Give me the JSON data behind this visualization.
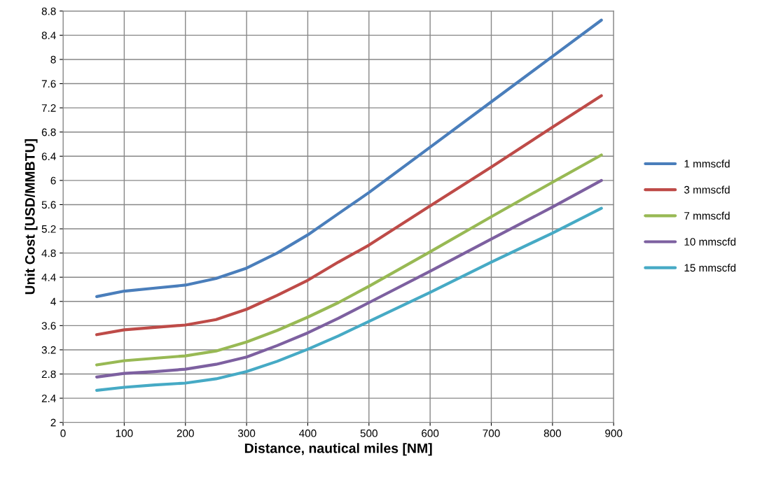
{
  "chart_data": {
    "type": "line",
    "xlabel": "Distance, nautical miles [NM]",
    "ylabel": "Unit Cost [USD/MMBTU]",
    "x": [
      55,
      100,
      150,
      200,
      250,
      300,
      350,
      400,
      450,
      500,
      600,
      700,
      800,
      880
    ],
    "series": [
      {
        "name": "1 mmscfd",
        "color": "#4a7ebb",
        "values": [
          4.08,
          4.17,
          4.22,
          4.27,
          4.38,
          4.55,
          4.8,
          5.1,
          5.45,
          5.8,
          6.55,
          7.3,
          8.05,
          8.65
        ]
      },
      {
        "name": "3 mmscfd",
        "color": "#be4b48",
        "values": [
          3.45,
          3.53,
          3.57,
          3.61,
          3.7,
          3.87,
          4.1,
          4.35,
          4.65,
          4.93,
          5.58,
          6.22,
          6.88,
          7.4
        ]
      },
      {
        "name": "7 mmscfd",
        "color": "#98b954",
        "values": [
          2.95,
          3.02,
          3.06,
          3.1,
          3.18,
          3.33,
          3.52,
          3.74,
          3.98,
          4.25,
          4.82,
          5.4,
          5.97,
          6.42
        ]
      },
      {
        "name": "10 mmscfd",
        "color": "#7d60a0",
        "values": [
          2.75,
          2.81,
          2.84,
          2.88,
          2.96,
          3.08,
          3.27,
          3.48,
          3.72,
          3.98,
          4.5,
          5.03,
          5.56,
          6.0
        ]
      },
      {
        "name": "15 mmscfd",
        "color": "#46aac5",
        "values": [
          2.53,
          2.58,
          2.62,
          2.65,
          2.72,
          2.84,
          3.01,
          3.21,
          3.43,
          3.67,
          4.15,
          4.65,
          5.13,
          5.54
        ]
      }
    ],
    "xlim": [
      0,
      900
    ],
    "xticks": [
      0,
      100,
      200,
      300,
      400,
      500,
      600,
      700,
      800,
      900
    ],
    "ylim": [
      2,
      8.8
    ],
    "yticks": [
      2,
      2.4,
      2.8,
      3.2,
      3.6,
      4,
      4.4,
      4.8,
      5.2,
      5.6,
      6,
      6.4,
      6.8,
      7.2,
      7.6,
      8,
      8.4,
      8.8
    ],
    "grid": true,
    "legend": "right",
    "marker": "none",
    "line_style": "solid"
  }
}
